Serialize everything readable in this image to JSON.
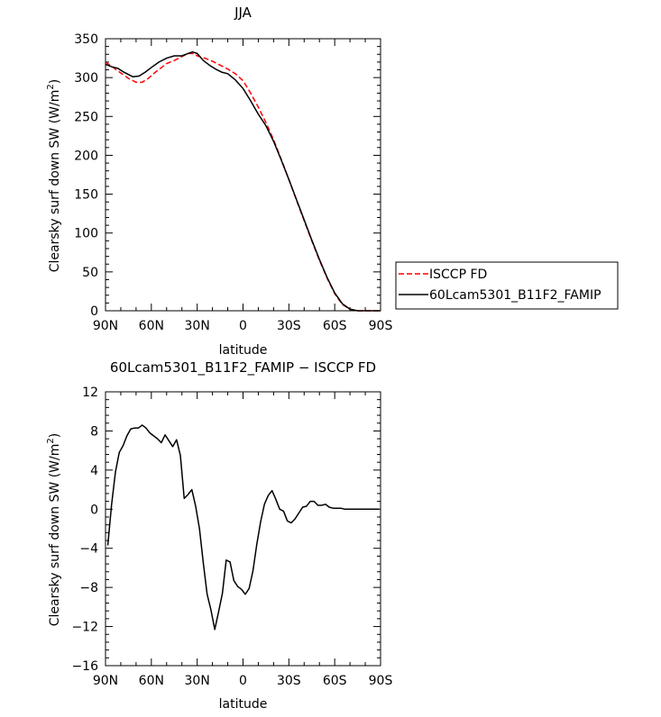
{
  "chart_data": [
    {
      "type": "line",
      "title": "JJA",
      "xlabel": "latitude",
      "ylabel": "Clearsky surf down SW (W/m",
      "ylabel_sup": "2",
      "ylabel_close": ")",
      "xlim": [
        90,
        -90
      ],
      "ylim": [
        0,
        350
      ],
      "xticks": [
        90,
        60,
        30,
        0,
        -30,
        -60,
        -90
      ],
      "xtick_labels": [
        "90N",
        "60N",
        "30N",
        "0",
        "30S",
        "60S",
        "90S"
      ],
      "yticks": [
        0,
        50,
        100,
        150,
        200,
        250,
        300,
        350
      ],
      "ytick_labels": [
        "0",
        "50",
        "100",
        "150",
        "200",
        "250",
        "300",
        "350"
      ],
      "legend_position": "right",
      "series": [
        {
          "name": "ISCCP FD",
          "color": "#ff0000",
          "dash": "dashed",
          "x": [
            90,
            85,
            80,
            75,
            70,
            66,
            62,
            58,
            54,
            50,
            45,
            40,
            36,
            33,
            30,
            25,
            20,
            15,
            10,
            5,
            0,
            -5,
            -10,
            -15,
            -20,
            -25,
            -30,
            -35,
            -40,
            -45,
            -50,
            -55,
            -60,
            -65,
            -70,
            -75,
            -80,
            -85,
            -90
          ],
          "y": [
            320,
            313,
            306,
            299,
            294,
            294,
            299,
            306,
            312,
            318,
            322,
            327,
            331,
            331,
            328,
            325,
            321,
            316,
            311,
            305,
            296,
            280,
            262,
            242,
            220,
            195,
            169,
            142,
            116,
            90,
            65,
            42,
            22,
            8,
            2,
            0,
            0,
            0,
            0
          ]
        },
        {
          "name": "60Lcam5301_B11F2_FAMIP",
          "color": "#000000",
          "dash": "solid",
          "x": [
            90,
            86,
            82,
            78,
            75,
            72,
            68,
            64,
            60,
            55,
            50,
            45,
            40,
            36,
            33,
            30,
            26,
            22,
            18,
            14,
            10,
            5,
            0,
            -5,
            -10,
            -15,
            -20,
            -25,
            -30,
            -35,
            -40,
            -45,
            -50,
            -55,
            -60,
            -65,
            -70,
            -75,
            -80,
            -85,
            -90
          ],
          "y": [
            317,
            314,
            312,
            307,
            304,
            301,
            302,
            307,
            313,
            320,
            325,
            328,
            328,
            331,
            333,
            331,
            322,
            316,
            311,
            307,
            305,
            297,
            286,
            270,
            253,
            238,
            218,
            194,
            169,
            143,
            117,
            91,
            66,
            43,
            23,
            9,
            2,
            0,
            0,
            0,
            0
          ]
        }
      ]
    },
    {
      "type": "line",
      "title": "60Lcam5301_B11F2_FAMIP − ISCCP FD",
      "xlabel": "latitude",
      "ylabel": "Clearsky surf down SW (W/m",
      "ylabel_sup": "2",
      "ylabel_close": ")",
      "xlim": [
        90,
        -90
      ],
      "ylim": [
        -16,
        12
      ],
      "xticks": [
        90,
        60,
        30,
        0,
        -30,
        -60,
        -90
      ],
      "xtick_labels": [
        "90N",
        "60N",
        "30N",
        "0",
        "30S",
        "60S",
        "90S"
      ],
      "yticks": [
        -16,
        -12,
        -8,
        -4,
        0,
        4,
        8,
        12
      ],
      "ytick_labels": [
        "−16",
        "−12",
        "−8",
        "−4",
        "0",
        "4",
        "8",
        "12"
      ],
      "series": [
        {
          "color": "#000000",
          "dash": "solid",
          "x": [
            88.5,
            86,
            83.5,
            81,
            78.5,
            76,
            73.5,
            71,
            68.5,
            66,
            63.5,
            61,
            58.5,
            56,
            53.5,
            51,
            48.5,
            46,
            43.5,
            41,
            38.5,
            36,
            33.5,
            31,
            28.5,
            26,
            23.5,
            21,
            18.5,
            16,
            13.5,
            11,
            8.5,
            6,
            3.5,
            1,
            -1.5,
            -4,
            -6.5,
            -9,
            -11.5,
            -14,
            -16.5,
            -19,
            -21.5,
            -24,
            -26.5,
            -29,
            -31.5,
            -34,
            -36.5,
            -39,
            -41.5,
            -44,
            -46.5,
            -49,
            -51.5,
            -54,
            -56.5,
            -59,
            -61.5,
            -64,
            -66.5,
            -69,
            -71.5,
            -74,
            -76.5,
            -79,
            -81.5,
            -84,
            -86.5,
            -89
          ],
          "y": [
            -3.7,
            0.5,
            3.8,
            5.8,
            6.5,
            7.5,
            8.2,
            8.3,
            8.3,
            8.6,
            8.3,
            7.8,
            7.5,
            7.2,
            6.8,
            7.6,
            7.0,
            6.4,
            7.1,
            5.5,
            1.1,
            1.5,
            2.0,
            0.3,
            -2.0,
            -5.5,
            -8.7,
            -10.3,
            -12.3,
            -10.5,
            -8.6,
            -5.2,
            -5.4,
            -7.3,
            -7.9,
            -8.2,
            -8.7,
            -8.1,
            -6.3,
            -3.6,
            -1.3,
            0.5,
            1.4,
            1.9,
            1.0,
            0.0,
            -0.2,
            -1.2,
            -1.4,
            -1.0,
            -0.4,
            0.2,
            0.3,
            0.8,
            0.8,
            0.4,
            0.4,
            0.5,
            0.2,
            0.1,
            0.1,
            0.1,
            0.0,
            0.0,
            0.0,
            0.0,
            0.0,
            0.0,
            0.0,
            0.0,
            0.0,
            0.0
          ]
        }
      ]
    }
  ]
}
